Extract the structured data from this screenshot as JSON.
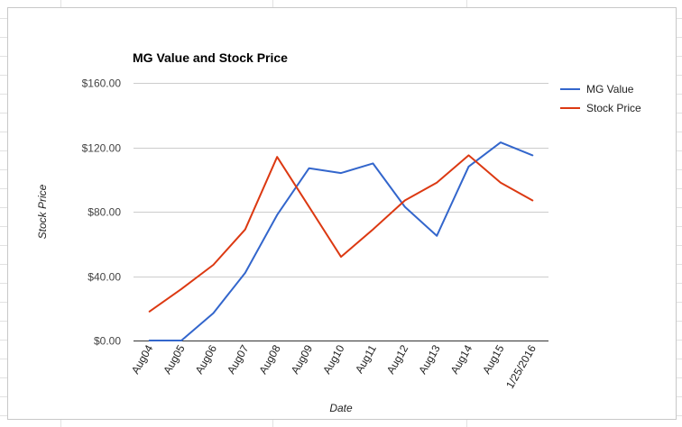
{
  "chart_data": {
    "type": "line",
    "title": "MG Value and Stock Price",
    "xlabel": "Date",
    "ylabel": "Stock Price",
    "categories": [
      "Aug04",
      "Aug05",
      "Aug06",
      "Aug07",
      "Aug08",
      "Aug09",
      "Aug10",
      "Aug11",
      "Aug12",
      "Aug13",
      "Aug14",
      "Aug15",
      "1/25/2016"
    ],
    "y_ticks": [
      "$0.00",
      "$40.00",
      "$80.00",
      "$120.00",
      "$160.00"
    ],
    "ylim": [
      0,
      160
    ],
    "grid": true,
    "legend_position": "right",
    "series": [
      {
        "name": "MG Value",
        "color": "#3366cc",
        "values": [
          0,
          0,
          17,
          42,
          78,
          107,
          104,
          110,
          83,
          65,
          108,
          123,
          115
        ]
      },
      {
        "name": "Stock Price",
        "color": "#dc3912",
        "values": [
          18,
          32,
          47,
          69,
          114,
          83,
          52,
          69,
          87,
          98,
          115,
          98,
          87
        ]
      }
    ]
  }
}
